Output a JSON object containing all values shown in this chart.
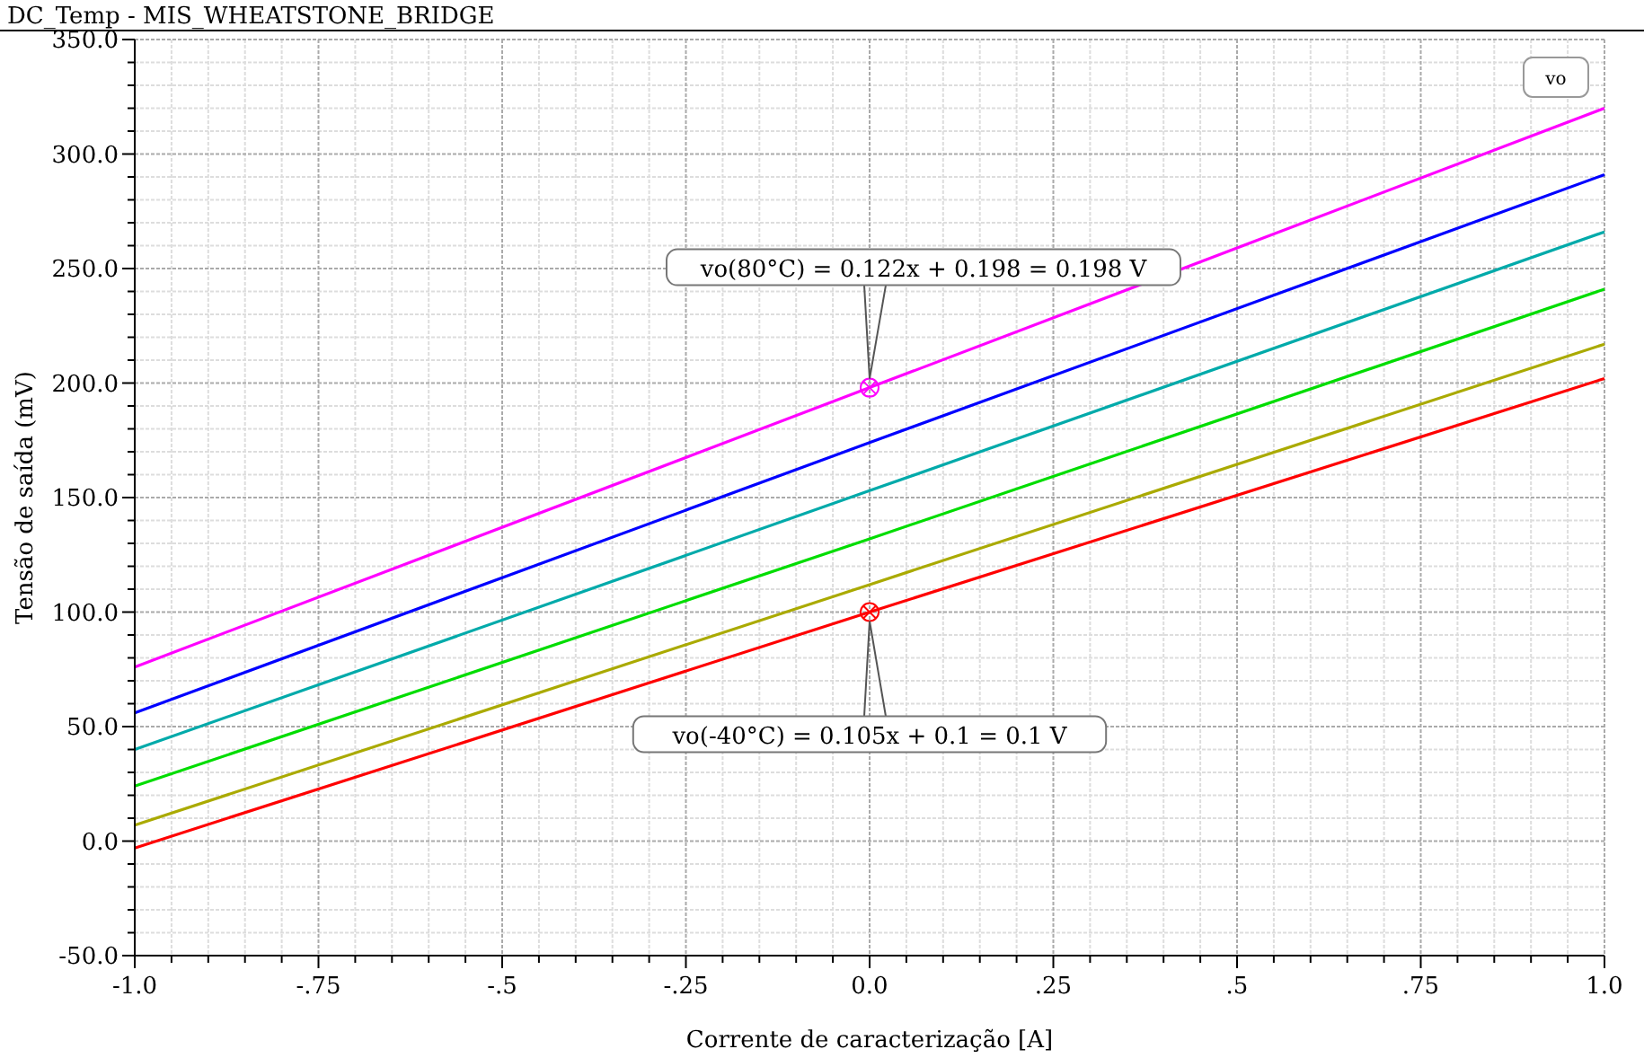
{
  "chart_data": {
    "type": "line",
    "title": "DC_Temp - MIS_WHEATSTONE_BRIDGE",
    "xlabel": "Corrente de caracterização [A]",
    "ylabel": "Tensão de saída (mV)",
    "legend_title": "vo",
    "x": [
      -1,
      0,
      1
    ],
    "series": [
      {
        "color": "#ff00ff",
        "values": [
          76,
          198,
          320
        ]
      },
      {
        "color": "#0000ff",
        "values": [
          56,
          174,
          291
        ]
      },
      {
        "color": "#00aaaa",
        "values": [
          40,
          153,
          266
        ]
      },
      {
        "color": "#00dd00",
        "values": [
          24,
          132,
          241
        ]
      },
      {
        "color": "#aaaa00",
        "values": [
          7,
          112,
          217
        ]
      },
      {
        "color": "#ff0000",
        "values": [
          -3,
          100,
          202
        ]
      },
      {
        "type": "scatter",
        "x": [
          0,
          0
        ],
        "values": [
          198,
          100
        ],
        "colors": [
          "#ff00ff",
          "#ff0000"
        ],
        "marker": "cross"
      }
    ],
    "annotations": [
      "vo(80°C) = 0.122x + 0.198 = 0.198 V",
      "vo(-40°C) = 0.105x + 0.1 = 0.1 V"
    ],
    "xlim": [
      -1,
      1
    ],
    "xticks": [
      {
        "value": -1,
        "label": "-1.0"
      },
      {
        "value": -0.75,
        "label": "-.75"
      },
      {
        "value": -0.5,
        "label": "-.5"
      },
      {
        "value": -0.25,
        "label": "-.25"
      },
      {
        "value": 0,
        "label": "0.0"
      },
      {
        "value": 0.25,
        "label": ".25"
      },
      {
        "value": 0.5,
        "label": ".5"
      },
      {
        "value": 0.75,
        "label": ".75"
      },
      {
        "value": 1,
        "label": "1.0"
      }
    ],
    "ylim": [
      -50,
      350
    ],
    "yticks": [
      {
        "value": -50,
        "label": "-50.0"
      },
      {
        "value": 0,
        "label": "0.0"
      },
      {
        "value": 50,
        "label": "50.0"
      },
      {
        "value": 100,
        "label": "100.0"
      },
      {
        "value": 150,
        "label": "150.0"
      },
      {
        "value": 200,
        "label": "200.0"
      },
      {
        "value": 250,
        "label": "250.0"
      },
      {
        "value": 300,
        "label": "300.0"
      },
      {
        "value": 350,
        "label": "350.0"
      }
    ],
    "grid": true,
    "marker": "none",
    "line_style": "solid"
  }
}
